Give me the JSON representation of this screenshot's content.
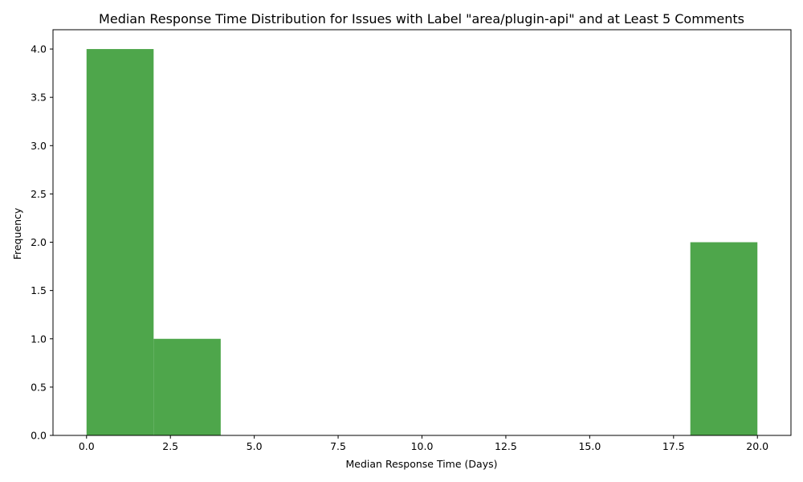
{
  "chart_data": {
    "type": "bar",
    "title": "Median Response Time Distribution for Issues with Label \"area/plugin-api\" and at Least 5 Comments",
    "xlabel": "Median Response Time (Days)",
    "ylabel": "Frequency",
    "bins": [
      {
        "start": 0,
        "end": 2,
        "count": 4
      },
      {
        "start": 2,
        "end": 4,
        "count": 1
      },
      {
        "start": 4,
        "end": 6,
        "count": 0
      },
      {
        "start": 6,
        "end": 8,
        "count": 0
      },
      {
        "start": 8,
        "end": 10,
        "count": 0
      },
      {
        "start": 10,
        "end": 12,
        "count": 0
      },
      {
        "start": 12,
        "end": 14,
        "count": 0
      },
      {
        "start": 14,
        "end": 16,
        "count": 0
      },
      {
        "start": 16,
        "end": 18,
        "count": 0
      },
      {
        "start": 18,
        "end": 20,
        "count": 2
      }
    ],
    "xlim": [
      -1,
      21
    ],
    "ylim": [
      0,
      4.2
    ],
    "xticks": [
      0,
      2.5,
      5,
      7.5,
      10,
      12.5,
      15,
      17.5,
      20
    ],
    "xtick_labels": [
      "0.0",
      "2.5",
      "5.0",
      "7.5",
      "10.0",
      "12.5",
      "15.0",
      "17.5",
      "20.0"
    ],
    "yticks": [
      0,
      0.5,
      1,
      1.5,
      2,
      2.5,
      3,
      3.5,
      4
    ],
    "ytick_labels": [
      "0.0",
      "0.5",
      "1.0",
      "1.5",
      "2.0",
      "2.5",
      "3.0",
      "3.5",
      "4.0"
    ],
    "bar_color": "#4ea64b",
    "grid": false,
    "legend": "none"
  }
}
